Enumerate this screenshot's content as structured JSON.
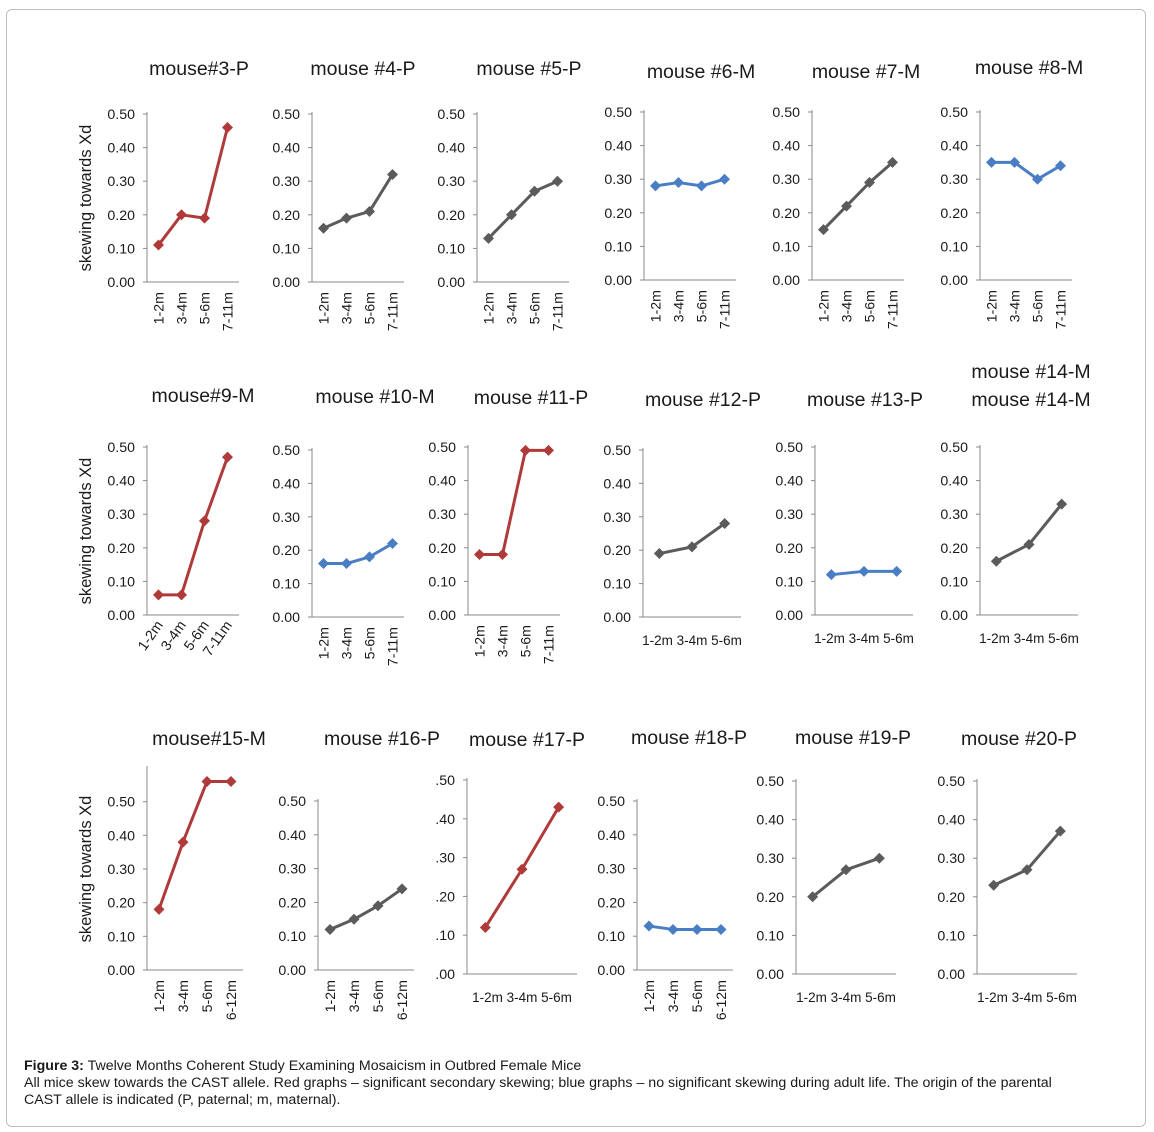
{
  "caption": {
    "label": "Figure 3:",
    "title": " Twelve Months Coherent Study Examining Mosaicism in Outbred Female Mice",
    "line2": "All mice skew towards the CAST allele. Red graphs – significant secondary skewing; blue graphs – no significant skewing during adult life. The origin of the parental",
    "line3": "CAST allele is indicated (P, paternal; m, maternal)."
  },
  "colors": {
    "red": "#b03a3a",
    "blue": "#4a7ec4",
    "gray": "#5b5b5b"
  },
  "chart_data": [
    {
      "type": "line",
      "title": "mouse#3-P",
      "ylabel": "skewing towards Xd",
      "ylim": [
        0,
        0.5
      ],
      "yticks": [
        "0.00",
        "0.10",
        "0.20",
        "0.30",
        "0.40",
        "0.50"
      ],
      "categories": [
        "1-2m",
        "3-4m",
        "5-6m",
        "7-11m"
      ],
      "values": [
        0.11,
        0.2,
        0.19,
        0.46
      ],
      "color": "red",
      "xrot": -90
    },
    {
      "type": "line",
      "title": "mouse #4-P",
      "ylabel": "",
      "ylim": [
        0,
        0.5
      ],
      "yticks": [
        "0.00",
        "0.10",
        "0.20",
        "0.30",
        "0.40",
        "0.50"
      ],
      "categories": [
        "1-2m",
        "3-4m",
        "5-6m",
        "7-11m"
      ],
      "values": [
        0.16,
        0.19,
        0.21,
        0.32
      ],
      "color": "gray",
      "xrot": -90
    },
    {
      "type": "line",
      "title": "mouse #5-P",
      "ylabel": "",
      "ylim": [
        0,
        0.5
      ],
      "yticks": [
        "0.00",
        "0.10",
        "0.20",
        "0.30",
        "0.40",
        "0.50"
      ],
      "categories": [
        "1-2m",
        "3-4m",
        "5-6m",
        "7-11m"
      ],
      "values": [
        0.13,
        0.2,
        0.27,
        0.3
      ],
      "color": "gray",
      "xrot": -90
    },
    {
      "type": "line",
      "title": "mouse #6-M",
      "ylabel": "",
      "ylim": [
        0,
        0.5
      ],
      "yticks": [
        "0.00",
        "0.10",
        "0.20",
        "0.30",
        "0.40",
        "0.50"
      ],
      "categories": [
        "1-2m",
        "3-4m",
        "5-6m",
        "7-11m"
      ],
      "values": [
        0.28,
        0.29,
        0.28,
        0.3
      ],
      "color": "blue",
      "xrot": -90
    },
    {
      "type": "line",
      "title": "mouse #7-M",
      "ylabel": "",
      "ylim": [
        0,
        0.5
      ],
      "yticks": [
        "0.00",
        "0.10",
        "0.20",
        "0.30",
        "0.40",
        "0.50"
      ],
      "categories": [
        "1-2m",
        "3-4m",
        "5-6m",
        "7-11m"
      ],
      "values": [
        0.15,
        0.22,
        0.29,
        0.35
      ],
      "color": "gray",
      "xrot": -90
    },
    {
      "type": "line",
      "title": "mouse #8-M",
      "ylabel": "",
      "ylim": [
        0,
        0.5
      ],
      "yticks": [
        "0.00",
        "0.10",
        "0.20",
        "0.30",
        "0.40",
        "0.50"
      ],
      "categories": [
        "1-2m",
        "3-4m",
        "5-6m",
        "7-11m"
      ],
      "values": [
        0.35,
        0.35,
        0.3,
        0.34
      ],
      "color": "blue",
      "xrot": -90
    },
    {
      "type": "line",
      "title": "mouse#9-M",
      "ylabel": "skewing towards Xd",
      "ylim": [
        0,
        0.5
      ],
      "yticks": [
        "0.00",
        "0.10",
        "0.20",
        "0.30",
        "0.40",
        "0.50"
      ],
      "categories": [
        "1-2m",
        "3-4m",
        "5-6m",
        "7-11m"
      ],
      "values": [
        0.06,
        0.06,
        0.28,
        0.47
      ],
      "color": "red",
      "xrot": -55
    },
    {
      "type": "line",
      "title": "mouse #10-M",
      "ylabel": "",
      "ylim": [
        0,
        0.5
      ],
      "yticks": [
        "0.00",
        "0.10",
        "0.20",
        "0.30",
        "0.40",
        "0.50"
      ],
      "categories": [
        "1-2m",
        "3-4m",
        "5-6m",
        "7-11m"
      ],
      "values": [
        0.16,
        0.16,
        0.18,
        0.22
      ],
      "color": "blue",
      "xrot": -90
    },
    {
      "type": "line",
      "title": "mouse #11-P",
      "ylabel": "",
      "ylim": [
        0,
        0.5
      ],
      "yticks": [
        "0.00",
        "0.10",
        "0.20",
        "0.30",
        "0.40",
        "0.50"
      ],
      "categories": [
        "1-2m",
        "3-4m",
        "5-6m",
        "7-11m"
      ],
      "values": [
        0.18,
        0.18,
        0.49,
        0.49
      ],
      "color": "red",
      "xrot": -90
    },
    {
      "type": "line",
      "title": "mouse #12-P",
      "ylabel": "",
      "ylim": [
        0,
        0.5
      ],
      "yticks": [
        "0.00",
        "0.10",
        "0.20",
        "0.30",
        "0.40",
        "0.50"
      ],
      "categories": [
        "1-2m",
        "3-4m",
        "5-6m"
      ],
      "values": [
        0.19,
        0.21,
        0.28
      ],
      "color": "gray",
      "xrot": 0
    },
    {
      "type": "line",
      "title": "mouse #13-P",
      "ylabel": "",
      "ylim": [
        0,
        0.5
      ],
      "yticks": [
        "0.00",
        "0.10",
        "0.20",
        "0.30",
        "0.40",
        "0.50"
      ],
      "categories": [
        "1-2m",
        "3-4m",
        "5-6m"
      ],
      "values": [
        0.12,
        0.13,
        0.13
      ],
      "color": "blue",
      "xrot": 0
    },
    {
      "type": "line",
      "title": "mouse #14-M",
      "title2": "mouse #14-M",
      "ylabel": "",
      "ylim": [
        0,
        0.5
      ],
      "yticks": [
        "0.00",
        "0.10",
        "0.20",
        "0.30",
        "0.40",
        "0.50"
      ],
      "categories": [
        "1-2m",
        "3-4m",
        "5-6m"
      ],
      "values": [
        0.16,
        0.21,
        0.33
      ],
      "color": "gray",
      "xrot": 0
    },
    {
      "type": "line",
      "title": "mouse#15-M",
      "ylabel": "skewing towards Xd",
      "ylim": [
        0,
        0.6
      ],
      "yticks": [
        "0.00",
        "0.10",
        "0.20",
        "0.30",
        "0.40",
        "0.50"
      ],
      "categories": [
        "1-2m",
        "3-4m",
        "5-6m",
        "6-12m"
      ],
      "values": [
        0.18,
        0.38,
        0.56,
        0.56
      ],
      "color": "red",
      "xrot": -90
    },
    {
      "type": "line",
      "title": "mouse #16-P",
      "ylabel": "",
      "ylim": [
        0,
        0.5
      ],
      "yticks": [
        "0.00",
        "0.10",
        "0.20",
        "0.30",
        "0.40",
        "0.50"
      ],
      "categories": [
        "1-2m",
        "3-4m",
        "5-6m",
        "6-12m"
      ],
      "values": [
        0.12,
        0.15,
        0.19,
        0.24
      ],
      "color": "gray",
      "xrot": -90
    },
    {
      "type": "line",
      "title": "mouse #17-P",
      "ylabel": "",
      "ylim": [
        0,
        0.5
      ],
      "yticks": [
        ".00",
        ".10",
        ".20",
        ".30",
        ".40",
        ".50"
      ],
      "categories": [
        "1-2m",
        "3-4m",
        "5-6m"
      ],
      "values": [
        0.12,
        0.27,
        0.43
      ],
      "color": "red",
      "xrot": 0
    },
    {
      "type": "line",
      "title": "mouse #18-P",
      "ylabel": "",
      "ylim": [
        0,
        0.5
      ],
      "yticks": [
        "0.00",
        "0.10",
        "0.20",
        "0.30",
        "0.40",
        "0.50"
      ],
      "categories": [
        "1-2m",
        "3-4m",
        "5-6m",
        "6-12m"
      ],
      "values": [
        0.13,
        0.12,
        0.12,
        0.12
      ],
      "color": "blue",
      "xrot": -90
    },
    {
      "type": "line",
      "title": "mouse #19-P",
      "ylabel": "",
      "ylim": [
        0,
        0.5
      ],
      "yticks": [
        "0.00",
        "0.10",
        "0.20",
        "0.30",
        "0.40",
        "0.50"
      ],
      "categories": [
        "1-2m",
        "3-4m",
        "5-6m"
      ],
      "values": [
        0.2,
        0.27,
        0.3
      ],
      "color": "gray",
      "xrot": 0
    },
    {
      "type": "line",
      "title": "mouse #20-P",
      "ylabel": "",
      "ylim": [
        0,
        0.5
      ],
      "yticks": [
        "0.00",
        "0.10",
        "0.20",
        "0.30",
        "0.40",
        "0.50"
      ],
      "categories": [
        "1-2m",
        "3-4m",
        "5-6m"
      ],
      "values": [
        0.23,
        0.27,
        0.37
      ],
      "color": "gray",
      "xrot": 0
    }
  ]
}
